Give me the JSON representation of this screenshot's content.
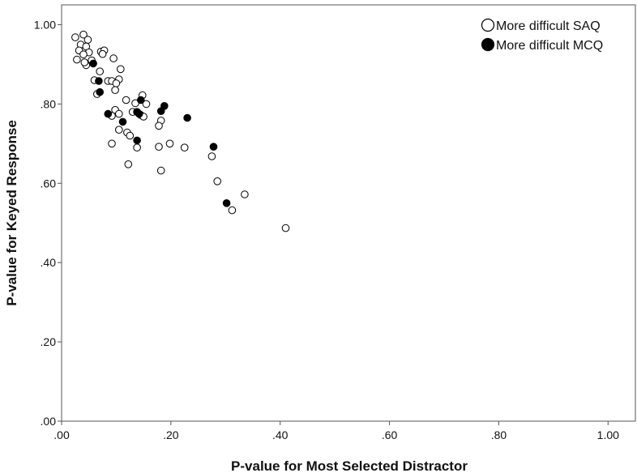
{
  "chart_data": {
    "type": "scatter",
    "title": "",
    "xlabel": "P-value for Most Selected Distractor",
    "ylabel": "P-value for Keyed Response",
    "xlim": [
      0,
      1.05
    ],
    "ylim": [
      0,
      1.05
    ],
    "x_ticks": [
      {
        "value": 0.0,
        "label": ".00"
      },
      {
        "value": 0.2,
        "label": ".20"
      },
      {
        "value": 0.4,
        "label": ".40"
      },
      {
        "value": 0.6,
        "label": ".60"
      },
      {
        "value": 0.8,
        "label": ".80"
      },
      {
        "value": 1.0,
        "label": "1.00"
      }
    ],
    "y_ticks": [
      {
        "value": 0.0,
        "label": ".00"
      },
      {
        "value": 0.2,
        "label": ".20"
      },
      {
        "value": 0.4,
        "label": ".40"
      },
      {
        "value": 0.6,
        "label": ".60"
      },
      {
        "value": 0.8,
        "label": ".80"
      },
      {
        "value": 1.0,
        "label": "1.00"
      }
    ],
    "grid": false,
    "legend_position": "top-right",
    "series": [
      {
        "name": "More difficult SAQ",
        "marker": "open-circle",
        "color": "#000000",
        "points": [
          [
            0.025,
            0.968
          ],
          [
            0.04,
            0.975
          ],
          [
            0.048,
            0.962
          ],
          [
            0.035,
            0.95
          ],
          [
            0.045,
            0.945
          ],
          [
            0.032,
            0.935
          ],
          [
            0.05,
            0.93
          ],
          [
            0.04,
            0.925
          ],
          [
            0.028,
            0.912
          ],
          [
            0.055,
            0.91
          ],
          [
            0.045,
            0.898
          ],
          [
            0.042,
            0.905
          ],
          [
            0.072,
            0.932
          ],
          [
            0.078,
            0.935
          ],
          [
            0.075,
            0.926
          ],
          [
            0.095,
            0.915
          ],
          [
            0.108,
            0.888
          ],
          [
            0.07,
            0.882
          ],
          [
            0.085,
            0.858
          ],
          [
            0.06,
            0.86
          ],
          [
            0.092,
            0.858
          ],
          [
            0.105,
            0.862
          ],
          [
            0.1,
            0.852
          ],
          [
            0.098,
            0.835
          ],
          [
            0.065,
            0.825
          ],
          [
            0.148,
            0.822
          ],
          [
            0.118,
            0.81
          ],
          [
            0.135,
            0.802
          ],
          [
            0.155,
            0.8
          ],
          [
            0.13,
            0.78
          ],
          [
            0.098,
            0.785
          ],
          [
            0.105,
            0.775
          ],
          [
            0.092,
            0.77
          ],
          [
            0.145,
            0.772
          ],
          [
            0.15,
            0.768
          ],
          [
            0.182,
            0.758
          ],
          [
            0.178,
            0.745
          ],
          [
            0.105,
            0.735
          ],
          [
            0.12,
            0.728
          ],
          [
            0.125,
            0.72
          ],
          [
            0.092,
            0.7
          ],
          [
            0.138,
            0.69
          ],
          [
            0.178,
            0.692
          ],
          [
            0.198,
            0.7
          ],
          [
            0.225,
            0.69
          ],
          [
            0.275,
            0.668
          ],
          [
            0.122,
            0.648
          ],
          [
            0.182,
            0.632
          ],
          [
            0.285,
            0.605
          ],
          [
            0.335,
            0.572
          ],
          [
            0.312,
            0.532
          ],
          [
            0.41,
            0.487
          ]
        ]
      },
      {
        "name": "More difficult MCQ",
        "marker": "filled-circle",
        "color": "#000000",
        "points": [
          [
            0.058,
            0.902
          ],
          [
            0.068,
            0.858
          ],
          [
            0.07,
            0.83
          ],
          [
            0.085,
            0.775
          ],
          [
            0.112,
            0.755
          ],
          [
            0.138,
            0.78
          ],
          [
            0.142,
            0.775
          ],
          [
            0.145,
            0.81
          ],
          [
            0.138,
            0.708
          ],
          [
            0.182,
            0.782
          ],
          [
            0.188,
            0.795
          ],
          [
            0.23,
            0.765
          ],
          [
            0.278,
            0.692
          ],
          [
            0.302,
            0.55
          ]
        ]
      }
    ]
  }
}
